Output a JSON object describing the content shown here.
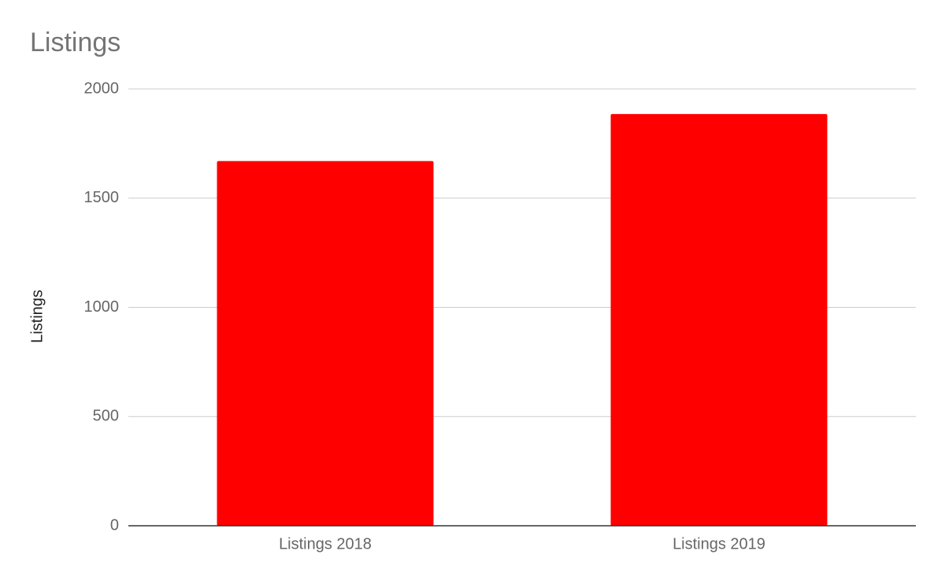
{
  "chart_data": {
    "type": "bar",
    "title": "Listings",
    "y_label": "Listings",
    "categories": [
      "Listings 2018",
      "Listings 2019"
    ],
    "values": [
      1670,
      1885
    ],
    "color": "#ff0000",
    "ylim": [
      0,
      2000
    ],
    "yticks": [
      0,
      500,
      1000,
      1500,
      2000
    ],
    "grid": true
  }
}
